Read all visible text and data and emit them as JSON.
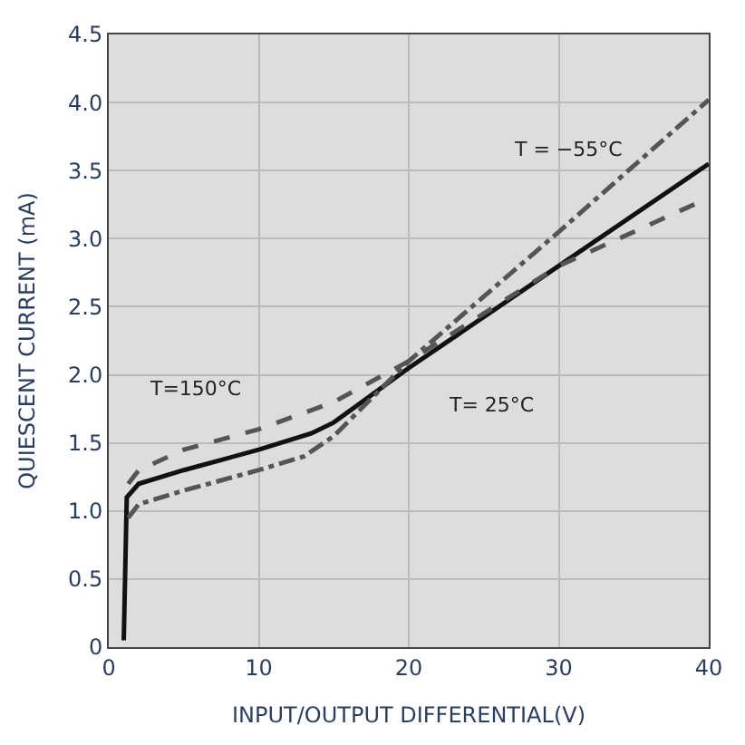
{
  "chart_data": {
    "type": "line",
    "xlabel": "INPUT/OUTPUT DIFFERENTIAL(V)",
    "ylabel": "QUIESCENT CURRENT (mA)",
    "xlim": [
      0,
      40
    ],
    "xticks": [
      0,
      10,
      20,
      30,
      40
    ],
    "ylim": [
      0,
      4.5
    ],
    "yticks": [
      0,
      0.5,
      {
        "value": 1.0,
        "label": "1.0"
      },
      1.5,
      {
        "value": 2.0,
        "label": "2.0"
      },
      2.5,
      {
        "value": 3.0,
        "label": "3.0"
      },
      3.5,
      {
        "value": 4.0,
        "label": "4.0"
      },
      4.5
    ],
    "grid": true,
    "legend": false,
    "marker": "none",
    "series": [
      {
        "name": "T= 25°C",
        "color": "#111111",
        "line_style": "solid",
        "x": [
          1.0,
          1.2,
          2,
          5,
          10,
          13.5,
          15,
          20,
          30,
          40
        ],
        "values": [
          0.05,
          1.1,
          1.2,
          1.3,
          1.45,
          1.57,
          1.65,
          2.05,
          2.8,
          3.55
        ]
      },
      {
        "name": "T=150°C",
        "color": "#555555",
        "line_style": "dashed",
        "x": [
          1.3,
          2,
          5,
          10,
          15,
          20,
          25,
          30,
          40
        ],
        "values": [
          1.2,
          1.3,
          1.45,
          1.6,
          1.8,
          2.1,
          2.45,
          2.8,
          3.3
        ]
      },
      {
        "name": "T = −55°C",
        "color": "#555555",
        "line_style": "dashdot",
        "x": [
          1.3,
          2,
          5,
          10,
          13,
          15,
          20,
          30,
          40
        ],
        "values": [
          0.95,
          1.05,
          1.15,
          1.3,
          1.4,
          1.55,
          2.1,
          3.05,
          4.02
        ]
      }
    ]
  }
}
